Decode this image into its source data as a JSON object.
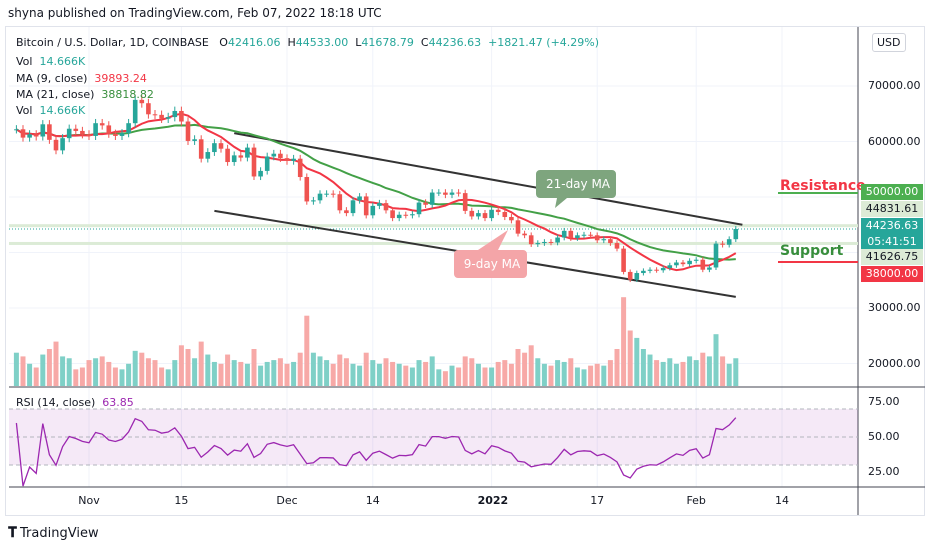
{
  "header": {
    "published": "shyna published on TradingView.com, Feb 07, 2022 18:18 UTC"
  },
  "legend": {
    "symbol": "Bitcoin / U.S. Dollar, 1D, COINBASE",
    "o_label": "O",
    "open": "42416.06",
    "h_label": "H",
    "high": "44533.00",
    "l_label": "L",
    "low": "41678.79",
    "c_label": "C",
    "close": "44236.63",
    "change": "+1821.47 (+4.29%)",
    "vol_label": "Vol",
    "vol": "14.666K",
    "ma9_label": "MA (9, close)",
    "ma9": "39893.24",
    "ma21_label": "MA (21, close)",
    "ma21": "38818.82",
    "vol2_label": "Vol",
    "vol2": "14.666K",
    "rsi_label": "RSI (14, close)",
    "rsi": "63.85"
  },
  "currency": "USD",
  "price_labels": {
    "resistance_val": "50000.00",
    "r1": "44831.61",
    "last": "44236.63",
    "countdown": "05:41:51",
    "s1": "41626.75",
    "support_val": "38000.00"
  },
  "annotations": {
    "resistance": "Resistance",
    "support": "Support",
    "ma21": "21-day MA",
    "ma9": "9-day MA"
  },
  "footer": {
    "brand": "TradingView"
  },
  "colors": {
    "up": "#26a69a",
    "down": "#ef5350",
    "ma9": "#f23645",
    "ma21": "#43a047",
    "rsi": "#9c27b0",
    "resistance": "#4caf50",
    "support": "#f23645"
  },
  "chart_data": {
    "type": "candlestick",
    "start_date": "2021-10-21",
    "closes": [
      62200,
      60700,
      61300,
      60900,
      63100,
      60300,
      58400,
      60600,
      62300,
      61900,
      61300,
      61000,
      63300,
      62900,
      61400,
      61000,
      61500,
      63300,
      67500,
      66900,
      64900,
      64800,
      64100,
      64400,
      65500,
      63600,
      60100,
      60400,
      56900,
      58100,
      59700,
      58700,
      56300,
      57500,
      57100,
      58900,
      53700,
      54700,
      57300,
      57800,
      57000,
      56500,
      56900,
      53600,
      49200,
      49400,
      50600,
      50600,
      50500,
      47600,
      47100,
      49400,
      50100,
      46700,
      48400,
      48900,
      47600,
      46200,
      46800,
      46700,
      46900,
      49000,
      48600,
      50800,
      50800,
      50400,
      50800,
      50700,
      47500,
      46500,
      47100,
      46200,
      47700,
      47300,
      46400,
      45800,
      43400,
      43100,
      41500,
      41700,
      41900,
      41800,
      42700,
      43900,
      42600,
      43100,
      43200,
      43100,
      42200,
      42400,
      41700,
      40700,
      36500,
      35100,
      36300,
      36700,
      36900,
      36800,
      37200,
      37700,
      38200,
      37900,
      38500,
      38700,
      36900,
      37300,
      41600,
      41400,
      42400,
      44236.63
    ],
    "volumes_k": [
      18,
      16,
      12,
      10,
      17,
      20,
      24,
      16,
      15,
      9,
      10,
      14,
      15,
      16,
      13,
      10,
      9,
      12,
      19,
      18,
      15,
      14,
      10,
      9,
      14,
      22,
      20,
      15,
      24,
      17,
      13,
      12,
      17,
      14,
      13,
      12,
      20,
      11,
      13,
      14,
      15,
      12,
      13,
      18,
      38,
      18,
      16,
      14,
      12,
      17,
      15,
      12,
      11,
      18,
      14,
      12,
      15,
      13,
      12,
      11,
      10,
      14,
      13,
      16,
      9,
      8,
      11,
      10,
      16,
      15,
      12,
      10,
      10,
      13,
      14,
      12,
      20,
      18,
      22,
      15,
      12,
      11,
      14,
      13,
      15,
      10,
      9,
      11,
      12,
      11,
      14,
      20,
      48,
      30,
      26,
      20,
      17,
      14,
      13,
      15,
      12,
      13,
      16,
      14,
      18,
      16,
      28,
      16,
      12,
      15
    ],
    "y_ticks": [
      "70000.00",
      "60000.00",
      "30000.00",
      "20000.00"
    ],
    "y_tick_values": [
      70000,
      60000,
      30000,
      20000
    ],
    "rsi_ticks": [
      "75.00",
      "50.00",
      "25.00"
    ],
    "rsi_tick_values": [
      75,
      50,
      25
    ],
    "x_ticks": [
      {
        "label": "Nov",
        "date": "2021-11-01"
      },
      {
        "label": "15",
        "date": "2021-11-15"
      },
      {
        "label": "Dec",
        "date": "2021-12-01"
      },
      {
        "label": "14",
        "date": "2021-12-14"
      },
      {
        "label": "2022",
        "date": "2022-01-01"
      },
      {
        "label": "17",
        "date": "2022-01-17"
      },
      {
        "label": "Feb",
        "date": "2022-02-01"
      },
      {
        "label": "14",
        "date": "2022-02-14"
      }
    ],
    "levels": {
      "resistance": 50000,
      "support": 38000,
      "r1": 44831.61,
      "s1": 41626.75
    },
    "channel": {
      "upper": [
        {
          "date": "2021-11-23",
          "price": 61500
        },
        {
          "date": "2022-02-08",
          "price": 45000
        }
      ],
      "lower": [
        {
          "date": "2021-11-20",
          "price": 47500
        },
        {
          "date": "2022-02-07",
          "price": 32000
        }
      ]
    },
    "grid": true,
    "scale": "linear"
  }
}
